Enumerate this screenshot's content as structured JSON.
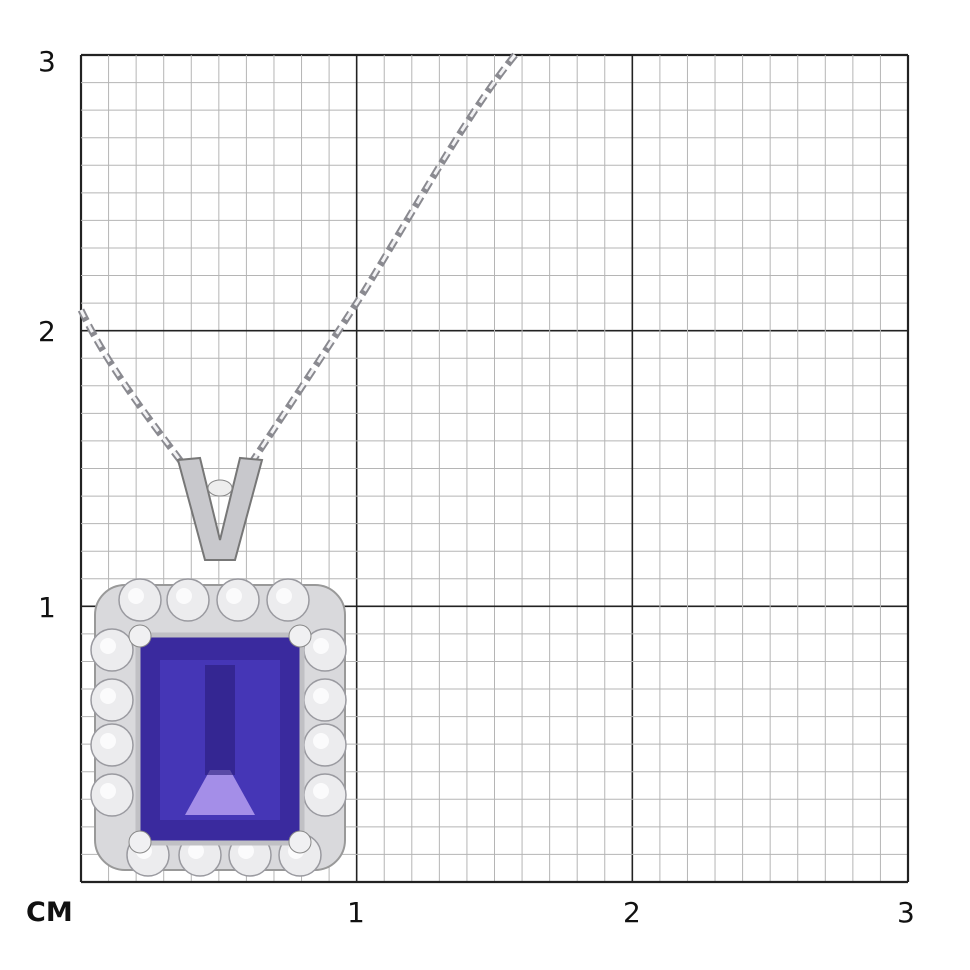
{
  "scale": {
    "unit": "CM",
    "x_labels": [
      "1",
      "2",
      "3"
    ],
    "y_labels": [
      "3",
      "2",
      "1"
    ],
    "subdivisions_per_unit": 10
  },
  "product": {
    "type": "pendant-necklace",
    "gem_color": "#3a2a9e",
    "metal_color": "#c8c8cc"
  }
}
